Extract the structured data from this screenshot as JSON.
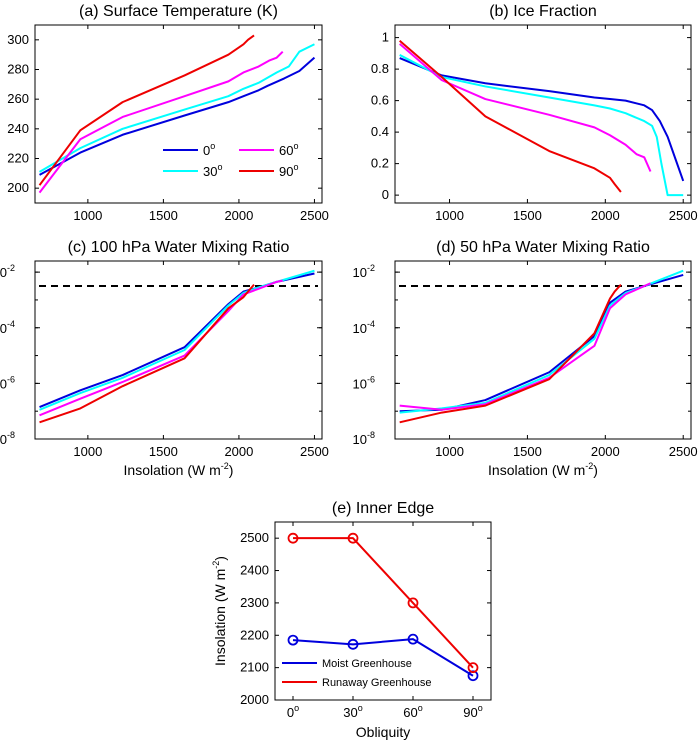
{
  "chart_data": [
    {
      "id": "a",
      "type": "line",
      "title": "(a) Surface Temperature (K)",
      "xlabel": "",
      "ylabel": "",
      "xlim": [
        650,
        2550
      ],
      "ylim": [
        190,
        310
      ],
      "xticks": [
        1000,
        1500,
        2000,
        2500
      ],
      "yticks": [
        200,
        220,
        240,
        260,
        280,
        300
      ],
      "legend_title_unit": "o",
      "series": [
        {
          "name": "0",
          "color": "#0000dd",
          "x": [
            680,
            950,
            1230,
            1640,
            1930,
            2030,
            2130,
            2190,
            2300,
            2400,
            2500
          ],
          "y": [
            209,
            224,
            236,
            249,
            258,
            262,
            266,
            269,
            274,
            279,
            288
          ]
        },
        {
          "name": "30",
          "color": "#00ffff",
          "x": [
            680,
            950,
            1230,
            1640,
            1930,
            2030,
            2130,
            2250,
            2330,
            2400,
            2500
          ],
          "y": [
            211,
            227,
            240,
            253,
            262,
            267,
            271,
            278,
            282,
            292,
            297
          ]
        },
        {
          "name": "60",
          "color": "#ff00ff",
          "x": [
            680,
            950,
            1230,
            1640,
            1930,
            2030,
            2130,
            2200,
            2250,
            2290
          ],
          "y": [
            197,
            233,
            248,
            262,
            272,
            278,
            282,
            286,
            288,
            292
          ]
        },
        {
          "name": "90",
          "color": "#ee0000",
          "x": [
            680,
            950,
            1230,
            1640,
            1930,
            2030,
            2060,
            2100
          ],
          "y": [
            202,
            239,
            258,
            276,
            290,
            297,
            300,
            303
          ]
        }
      ]
    },
    {
      "id": "b",
      "type": "line",
      "title": "(b) Ice Fraction",
      "xlabel": "",
      "ylabel": "",
      "xlim": [
        650,
        2550
      ],
      "ylim": [
        -0.05,
        1.08
      ],
      "xticks": [
        1000,
        1500,
        2000,
        2500
      ],
      "yticks": [
        0,
        0.2,
        0.4,
        0.6,
        0.8,
        1
      ],
      "ytick_labels": [
        "0",
        "0.2",
        "0.4",
        "0.6",
        "0.8",
        "1"
      ],
      "series": [
        {
          "name": "0",
          "color": "#0000dd",
          "x": [
            680,
            950,
            1230,
            1640,
            1930,
            2030,
            2130,
            2250,
            2300,
            2350,
            2400,
            2450,
            2500
          ],
          "y": [
            0.87,
            0.76,
            0.71,
            0.66,
            0.62,
            0.61,
            0.6,
            0.57,
            0.54,
            0.47,
            0.37,
            0.23,
            0.09
          ]
        },
        {
          "name": "30",
          "color": "#00ffff",
          "x": [
            680,
            950,
            1230,
            1640,
            1930,
            2030,
            2130,
            2250,
            2300,
            2330,
            2360,
            2400,
            2450,
            2500
          ],
          "y": [
            0.89,
            0.75,
            0.69,
            0.62,
            0.57,
            0.55,
            0.52,
            0.47,
            0.44,
            0.37,
            0.2,
            0.0,
            0.0,
            0.0
          ]
        },
        {
          "name": "60",
          "color": "#ff00ff",
          "x": [
            680,
            950,
            1230,
            1640,
            1930,
            2030,
            2130,
            2200,
            2250,
            2290
          ],
          "y": [
            0.96,
            0.73,
            0.61,
            0.51,
            0.43,
            0.38,
            0.32,
            0.26,
            0.24,
            0.15
          ]
        },
        {
          "name": "90",
          "color": "#ee0000",
          "x": [
            680,
            950,
            1230,
            1640,
            1930,
            2030,
            2060,
            2100
          ],
          "y": [
            0.98,
            0.75,
            0.5,
            0.28,
            0.17,
            0.11,
            0.07,
            0.02
          ]
        }
      ]
    },
    {
      "id": "c",
      "type": "line",
      "title": "(c) 100 hPa Water Mixing Ratio",
      "xlabel": "Insolation (W m-2)",
      "xlabel_base": "Insolation (W m",
      "xlabel_sup": "-2",
      "xlabel_end": ")",
      "ylabel": "",
      "yscale": "log",
      "xlim": [
        650,
        2550
      ],
      "ylim_exp": [
        -8,
        -1.6
      ],
      "xticks": [
        1000,
        1500,
        2000,
        2500
      ],
      "yticks_exp": [
        -8,
        -6,
        -4,
        -2
      ],
      "ytick_base": "10",
      "ytick_sups": [
        "-8",
        "-6",
        "-4",
        "-2"
      ],
      "threshold_log10": -2.5,
      "series": [
        {
          "name": "0",
          "color": "#0000dd",
          "x": [
            680,
            950,
            1230,
            1640,
            1930,
            2030,
            2130,
            2250,
            2500
          ],
          "log10_y": [
            -6.85,
            -6.25,
            -5.7,
            -4.7,
            -3.15,
            -2.7,
            -2.55,
            -2.35,
            -2.05
          ]
        },
        {
          "name": "30",
          "color": "#00ffff",
          "x": [
            680,
            950,
            1230,
            1640,
            1930,
            2030,
            2130,
            2250,
            2500
          ],
          "log10_y": [
            -6.95,
            -6.35,
            -5.8,
            -4.8,
            -3.2,
            -2.75,
            -2.55,
            -2.35,
            -1.95
          ]
        },
        {
          "name": "60",
          "color": "#ff00ff",
          "x": [
            680,
            950,
            1230,
            1640,
            1930,
            2030,
            2130,
            2250,
            2290
          ],
          "log10_y": [
            -7.15,
            -6.55,
            -5.95,
            -5.0,
            -3.4,
            -2.8,
            -2.6,
            -2.35,
            -2.3
          ]
        },
        {
          "name": "90",
          "color": "#ee0000",
          "x": [
            680,
            950,
            1230,
            1640,
            1930,
            2030,
            2060,
            2100
          ],
          "log10_y": [
            -7.4,
            -6.9,
            -6.1,
            -5.1,
            -3.3,
            -2.9,
            -2.7,
            -2.45
          ]
        }
      ]
    },
    {
      "id": "d",
      "type": "line",
      "title": "(d) 50 hPa Water Mixing Ratio",
      "xlabel": "Insolation (W m-2)",
      "xlabel_base": "Insolation (W m",
      "xlabel_sup": "-2",
      "xlabel_end": ")",
      "ylabel": "",
      "yscale": "log",
      "xlim": [
        650,
        2550
      ],
      "ylim_exp": [
        -8,
        -1.6
      ],
      "xticks": [
        1000,
        1500,
        2000,
        2500
      ],
      "yticks_exp": [
        -8,
        -6,
        -4,
        -2
      ],
      "ytick_base": "10",
      "ytick_sups": [
        "-8",
        "-6",
        "-4",
        "-2"
      ],
      "threshold_log10": -2.5,
      "series": [
        {
          "name": "0",
          "color": "#0000dd",
          "x": [
            680,
            950,
            1230,
            1640,
            1930,
            2030,
            2130,
            2250,
            2500
          ],
          "log10_y": [
            -7.0,
            -6.95,
            -6.6,
            -5.6,
            -4.3,
            -3.1,
            -2.7,
            -2.5,
            -2.1
          ]
        },
        {
          "name": "30",
          "color": "#00ffff",
          "x": [
            680,
            950,
            1230,
            1640,
            1930,
            2030,
            2130,
            2250,
            2500
          ],
          "log10_y": [
            -7.05,
            -6.9,
            -6.7,
            -5.7,
            -4.4,
            -3.2,
            -2.75,
            -2.5,
            -1.95
          ]
        },
        {
          "name": "60",
          "color": "#ff00ff",
          "x": [
            680,
            950,
            1230,
            1640,
            1930,
            2030,
            2130,
            2250,
            2290
          ],
          "log10_y": [
            -6.8,
            -6.95,
            -6.75,
            -5.8,
            -4.65,
            -3.3,
            -2.8,
            -2.5,
            -2.4
          ]
        },
        {
          "name": "90",
          "color": "#ee0000",
          "x": [
            680,
            950,
            1230,
            1640,
            1930,
            2030,
            2060,
            2100
          ],
          "log10_y": [
            -7.4,
            -7.05,
            -6.8,
            -5.85,
            -4.2,
            -2.95,
            -2.7,
            -2.45
          ]
        }
      ]
    },
    {
      "id": "e",
      "type": "line",
      "title": "(e) Inner Edge",
      "xlabel": "Obliquity",
      "ylabel": "Insolation (W m-2)",
      "ylabel_base": "Insolation (W m",
      "ylabel_sup": "-2",
      "ylabel_end": ")",
      "categories": [
        "0",
        "30",
        "60",
        "90"
      ],
      "category_sup": "o",
      "xlim": [
        -0.3,
        3.3
      ],
      "ylim": [
        2000,
        2550
      ],
      "yticks": [
        2000,
        2100,
        2200,
        2300,
        2400,
        2500
      ],
      "series": [
        {
          "name": "Moist Greenhouse",
          "color": "#0000dd",
          "values": [
            2185,
            2172,
            2188,
            2075
          ]
        },
        {
          "name": "Runaway Greenhouse",
          "color": "#ee0000",
          "values": [
            2500,
            2500,
            2300,
            2100
          ]
        }
      ]
    }
  ]
}
